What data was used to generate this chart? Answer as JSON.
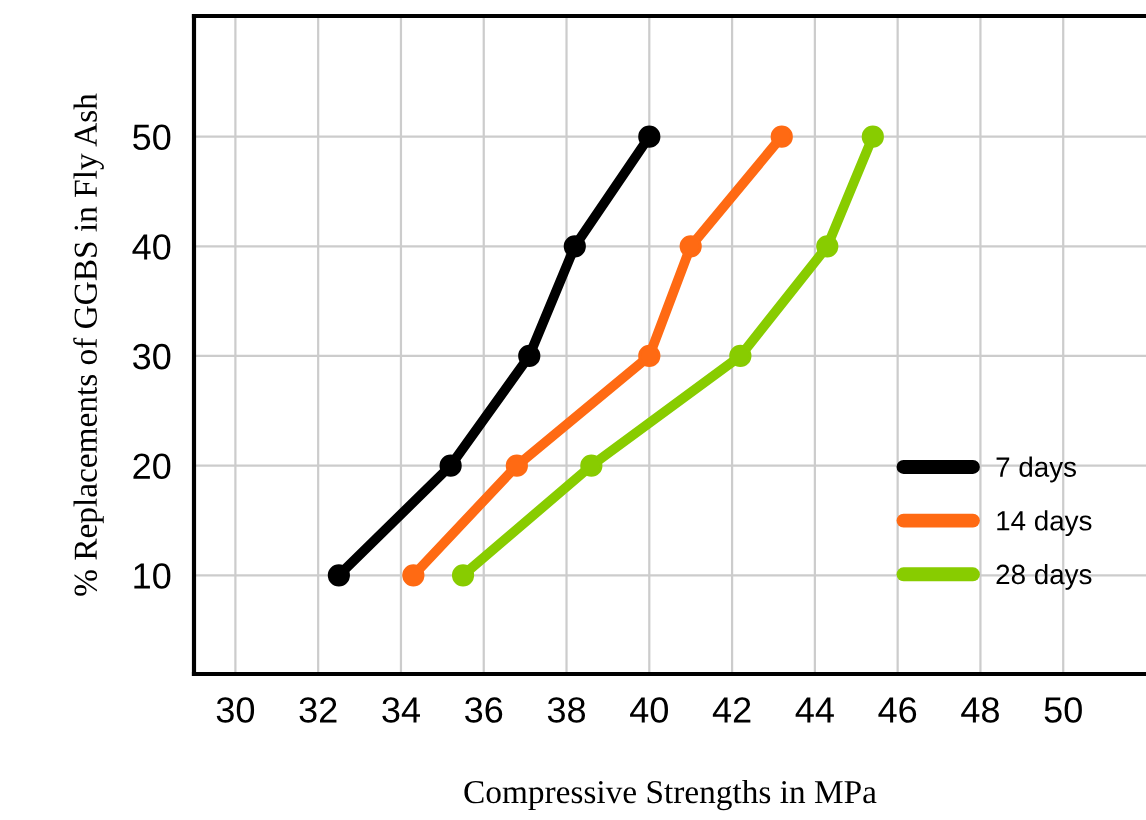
{
  "chart_data": {
    "type": "line",
    "xlabel": "Compressive Strengths in MPa",
    "ylabel": "% Replacements of GGBS in Fly Ash",
    "series": [
      {
        "name": "7 days",
        "color": "#000000",
        "x": [
          32.5,
          35.2,
          37.1,
          38.2,
          40.0
        ],
        "values": [
          10,
          20,
          30,
          40,
          50
        ]
      },
      {
        "name": "14 days",
        "color": "#ff6a13",
        "x": [
          34.3,
          36.8,
          40.0,
          41.0,
          43.2
        ],
        "values": [
          10,
          20,
          30,
          40,
          50
        ]
      },
      {
        "name": "28 days",
        "color": "#88cc00",
        "x": [
          35.5,
          38.6,
          42.2,
          44.3,
          45.4
        ],
        "values": [
          10,
          20,
          30,
          40,
          50
        ]
      }
    ],
    "xlim": [
      29,
      52
    ],
    "ylim": [
      1,
      61
    ],
    "xticks": [
      30,
      32,
      34,
      36,
      38,
      40,
      42,
      44,
      46,
      48,
      50
    ],
    "yticks": [
      10,
      20,
      30,
      40,
      50
    ],
    "grid": true,
    "legend": "bottom right",
    "marker": "circle",
    "line_style": "solid"
  }
}
